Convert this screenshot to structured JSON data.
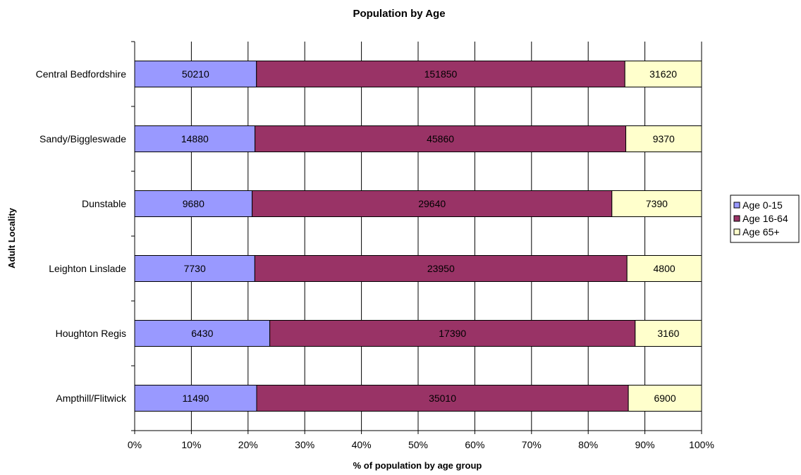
{
  "chart_data": {
    "type": "bar",
    "orientation": "horizontal",
    "stacked": "percent",
    "title": "Population by Age",
    "xlabel": "% of population by age group",
    "ylabel": "Adult Locality",
    "xlim": [
      0,
      100
    ],
    "x_ticks": [
      "0%",
      "10%",
      "20%",
      "30%",
      "40%",
      "50%",
      "60%",
      "70%",
      "80%",
      "90%",
      "100%"
    ],
    "categories": [
      "Central Bedfordshire",
      "Sandy/Biggleswade",
      "Dunstable",
      "Leighton Linslade",
      "Houghton Regis",
      "Ampthill/Flitwick"
    ],
    "series": [
      {
        "name": "Age 0-15",
        "color": "#9999ff",
        "values": [
          50210,
          14880,
          9680,
          7730,
          6430,
          11490
        ]
      },
      {
        "name": "Age 16-64",
        "color": "#993366",
        "values": [
          151850,
          45860,
          29640,
          23950,
          17390,
          35010
        ]
      },
      {
        "name": "Age 65+",
        "color": "#ffffcc",
        "values": [
          31620,
          9370,
          7390,
          4800,
          3160,
          6900
        ]
      }
    ],
    "grid": true,
    "legend_position": "right"
  }
}
